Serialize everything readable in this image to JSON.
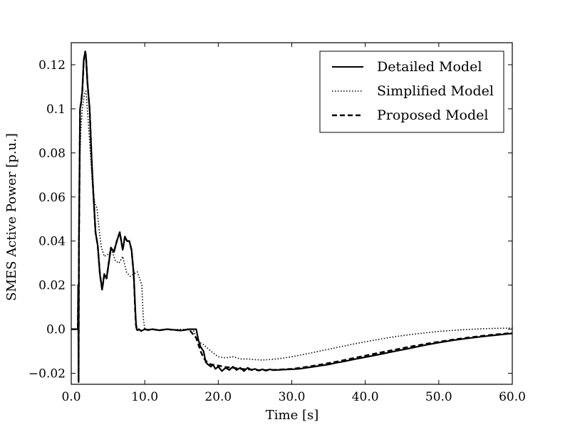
{
  "chart_data": {
    "type": "line",
    "title": "",
    "xlabel": "Time [s]",
    "ylabel": "SMES Active Power [p.u.]",
    "xlim": [
      0,
      60
    ],
    "ylim": [
      -0.025,
      0.13
    ],
    "x_ticks": [
      0,
      10,
      20,
      30,
      40,
      50,
      60
    ],
    "x_tick_labels": [
      "0.0",
      "10.0",
      "20.0",
      "30.0",
      "40.0",
      "50.0",
      "60.0"
    ],
    "y_ticks": [
      -0.02,
      0.0,
      0.02,
      0.04,
      0.06,
      0.08,
      0.1,
      0.12
    ],
    "y_tick_labels": [
      "−0.02",
      "0.0",
      "0.02",
      "0.04",
      "0.06",
      "0.08",
      "0.1",
      "0.12"
    ],
    "grid": false,
    "legend_position": "top-right",
    "series": [
      {
        "name": "Detailed Model",
        "style": "solid",
        "color": "#000000",
        "x": [
          0,
          0.9,
          0.95,
          1.0,
          1.05,
          1.1,
          1.2,
          1.35,
          1.5,
          1.7,
          1.9,
          2.0,
          2.2,
          2.5,
          2.8,
          3.0,
          3.3,
          3.6,
          3.9,
          4.2,
          4.5,
          4.8,
          5.1,
          5.4,
          5.8,
          6.2,
          6.6,
          7.0,
          7.3,
          7.6,
          7.9,
          8.2,
          8.5,
          8.7,
          8.8,
          8.9,
          9.0,
          9.2,
          9.5,
          10,
          10.5,
          11,
          12,
          13,
          14,
          15,
          16,
          17.0,
          17.3,
          17.6,
          18.0,
          18.3,
          18.6,
          19.0,
          19.3,
          19.6,
          20.0,
          20.5,
          21.0,
          21.5,
          22.0,
          22.5,
          23.0,
          23.5,
          24.0,
          24.5,
          25.0,
          25.5,
          26.0,
          26.5,
          27.0,
          27.5,
          28.0,
          29.0,
          30.0,
          31.0,
          32.0,
          33.0,
          34.0,
          35,
          36,
          37,
          38,
          39,
          40,
          42,
          44,
          46,
          48,
          50,
          52,
          54,
          56,
          58,
          60
        ],
        "values": [
          0,
          0,
          0.02,
          -0.024,
          0.04,
          0.06,
          0.1,
          0.103,
          0.108,
          0.122,
          0.126,
          0.124,
          0.112,
          0.1,
          0.075,
          0.062,
          0.044,
          0.038,
          0.025,
          0.018,
          0.025,
          0.023,
          0.03,
          0.037,
          0.035,
          0.04,
          0.044,
          0.036,
          0.042,
          0.04,
          0.04,
          0.036,
          0.025,
          0.01,
          0.003,
          0.0,
          -0.0005,
          0.0,
          -0.0008,
          0.0,
          -0.0004,
          0.0,
          -0.0005,
          0.0,
          -0.0003,
          -0.0006,
          0.0,
          0.0,
          -0.005,
          -0.008,
          -0.01,
          -0.015,
          -0.016,
          -0.017,
          -0.016,
          -0.018,
          -0.017,
          -0.019,
          -0.0175,
          -0.0185,
          -0.017,
          -0.0185,
          -0.0175,
          -0.019,
          -0.0175,
          -0.0185,
          -0.018,
          -0.0188,
          -0.0182,
          -0.0188,
          -0.0182,
          -0.0186,
          -0.0185,
          -0.0183,
          -0.0182,
          -0.018,
          -0.0175,
          -0.017,
          -0.0165,
          -0.016,
          -0.0153,
          -0.0147,
          -0.014,
          -0.0133,
          -0.0127,
          -0.0114,
          -0.01,
          -0.0087,
          -0.0073,
          -0.0061,
          -0.005,
          -0.0041,
          -0.0033,
          -0.0026,
          -0.0019
        ]
      },
      {
        "name": "Simplified Model",
        "style": "dotted",
        "color": "#000000",
        "x": [
          0,
          0.9,
          0.95,
          1.0,
          1.1,
          1.3,
          1.5,
          1.8,
          2.0,
          2.3,
          2.6,
          2.9,
          3.2,
          3.5,
          3.8,
          4.1,
          4.5,
          5.0,
          5.5,
          6.0,
          6.5,
          7.0,
          7.5,
          8.0,
          8.5,
          9.0,
          9.3,
          9.6,
          9.8,
          10.0,
          10.5,
          11,
          12,
          13,
          14,
          15,
          16,
          16.6,
          17.0,
          17.5,
          18.0,
          19.0,
          20.0,
          21.0,
          22.0,
          23.0,
          24.0,
          25.0,
          26.0,
          28.0,
          30.0,
          32.0,
          34.0,
          36.0,
          38.0,
          40.0,
          42.0,
          44.0,
          46.0,
          48.0,
          50.0,
          52.0,
          54.0,
          56.0,
          58.0,
          60.0
        ],
        "values": [
          0,
          0,
          0.01,
          0.02,
          0.07,
          0.09,
          0.1,
          0.107,
          0.108,
          0.095,
          0.08,
          0.065,
          0.057,
          0.055,
          0.045,
          0.037,
          0.033,
          0.034,
          0.036,
          0.031,
          0.03,
          0.033,
          0.026,
          0.024,
          0.025,
          0.026,
          0.023,
          0.02,
          0.005,
          0.0,
          0.0,
          0.0,
          -0.0003,
          0.0,
          -0.0003,
          0.0,
          -0.0003,
          -0.0002,
          -0.004,
          -0.006,
          -0.007,
          -0.01,
          -0.0125,
          -0.013,
          -0.0125,
          -0.0135,
          -0.0135,
          -0.0138,
          -0.014,
          -0.0135,
          -0.0125,
          -0.0112,
          -0.0098,
          -0.0084,
          -0.007,
          -0.0057,
          -0.0045,
          -0.0034,
          -0.0025,
          -0.0017,
          -0.001,
          -0.0005,
          -0.0001,
          0.0002,
          0.0004,
          0.0005
        ]
      },
      {
        "name": "Proposed Model",
        "style": "dashed",
        "color": "#000000",
        "x": [
          0,
          0.9,
          0.95,
          1.0,
          1.05,
          1.1,
          1.2,
          1.35,
          1.5,
          1.7,
          1.9,
          2.0,
          2.2,
          2.5,
          2.8,
          3.0,
          3.3,
          3.6,
          3.9,
          4.2,
          4.5,
          4.8,
          5.1,
          5.4,
          5.8,
          6.2,
          6.6,
          7.0,
          7.3,
          7.6,
          7.9,
          8.2,
          8.5,
          8.7,
          8.8,
          8.9,
          9.0,
          9.2,
          9.5,
          10,
          10.5,
          11,
          12,
          13,
          14,
          15,
          16,
          17.0,
          17.3,
          17.6,
          18.0,
          18.5,
          19.0,
          20.0,
          21.0,
          22.0,
          23.0,
          24.0,
          25.0,
          26.0,
          27.0,
          28.0,
          29.0,
          30.0,
          31.0,
          32.0,
          33.0,
          34.0,
          35,
          36,
          37,
          38,
          39,
          40,
          42,
          44,
          46,
          48,
          50,
          52,
          54,
          56,
          58,
          60
        ],
        "values": [
          0,
          0,
          0.02,
          -0.024,
          0.04,
          0.06,
          0.1,
          0.103,
          0.108,
          0.122,
          0.126,
          0.124,
          0.112,
          0.1,
          0.075,
          0.062,
          0.044,
          0.038,
          0.025,
          0.018,
          0.025,
          0.023,
          0.03,
          0.037,
          0.035,
          0.04,
          0.044,
          0.036,
          0.042,
          0.04,
          0.04,
          0.036,
          0.025,
          0.008,
          0.002,
          0.0,
          -0.0005,
          0.0,
          -0.0008,
          0.0,
          -0.0004,
          0.0,
          -0.0005,
          0.0,
          -0.0003,
          -0.0006,
          0.0,
          -0.004,
          -0.007,
          -0.01,
          -0.013,
          -0.015,
          -0.016,
          -0.0165,
          -0.0172,
          -0.0175,
          -0.018,
          -0.0182,
          -0.0185,
          -0.0186,
          -0.0185,
          -0.0184,
          -0.0182,
          -0.018,
          -0.0176,
          -0.0171,
          -0.0166,
          -0.016,
          -0.0154,
          -0.0148,
          -0.0141,
          -0.0134,
          -0.0127,
          -0.012,
          -0.0106,
          -0.0093,
          -0.008,
          -0.0068,
          -0.0057,
          -0.0047,
          -0.0038,
          -0.003,
          -0.0023,
          -0.0017
        ]
      }
    ]
  }
}
